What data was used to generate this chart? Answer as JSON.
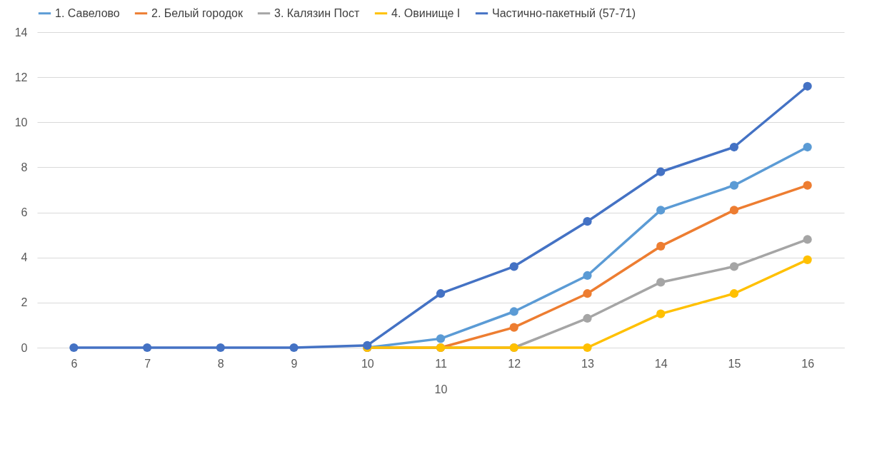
{
  "chart_data": {
    "type": "line",
    "xlabel": "10",
    "categories": [
      "6",
      "7",
      "8",
      "9",
      "10",
      "11",
      "12",
      "13",
      "14",
      "15",
      "16"
    ],
    "series": [
      {
        "name": "1. Савелово",
        "color": "#5b9bd5",
        "values": [
          null,
          null,
          null,
          null,
          0,
          0.4,
          1.6,
          3.2,
          6.1,
          7.2,
          8.9
        ]
      },
      {
        "name": "2. Белый городок",
        "color": "#ed7d31",
        "values": [
          null,
          null,
          null,
          null,
          0,
          0,
          0.9,
          2.4,
          4.5,
          6.1,
          7.2
        ]
      },
      {
        "name": "3. Калязин Пост",
        "color": "#a5a5a5",
        "values": [
          null,
          null,
          null,
          null,
          0,
          0,
          0,
          1.3,
          2.9,
          3.6,
          4.8
        ]
      },
      {
        "name": "4. Овинище I",
        "color": "#ffc000",
        "values": [
          null,
          null,
          null,
          null,
          0,
          0,
          0,
          0,
          1.5,
          2.4,
          3.9
        ]
      },
      {
        "name": "Частично-пакетный (57-71)",
        "color": "#4472c4",
        "values": [
          0,
          0,
          0,
          0,
          0.1,
          2.4,
          3.6,
          5.6,
          7.8,
          8.9,
          11.6
        ]
      }
    ],
    "ylim": [
      0,
      14
    ],
    "yticks": [
      0,
      2,
      4,
      6,
      8,
      10,
      12,
      14
    ],
    "grid": "y",
    "legend": "top",
    "marker": "circle",
    "line_style": "solid"
  }
}
